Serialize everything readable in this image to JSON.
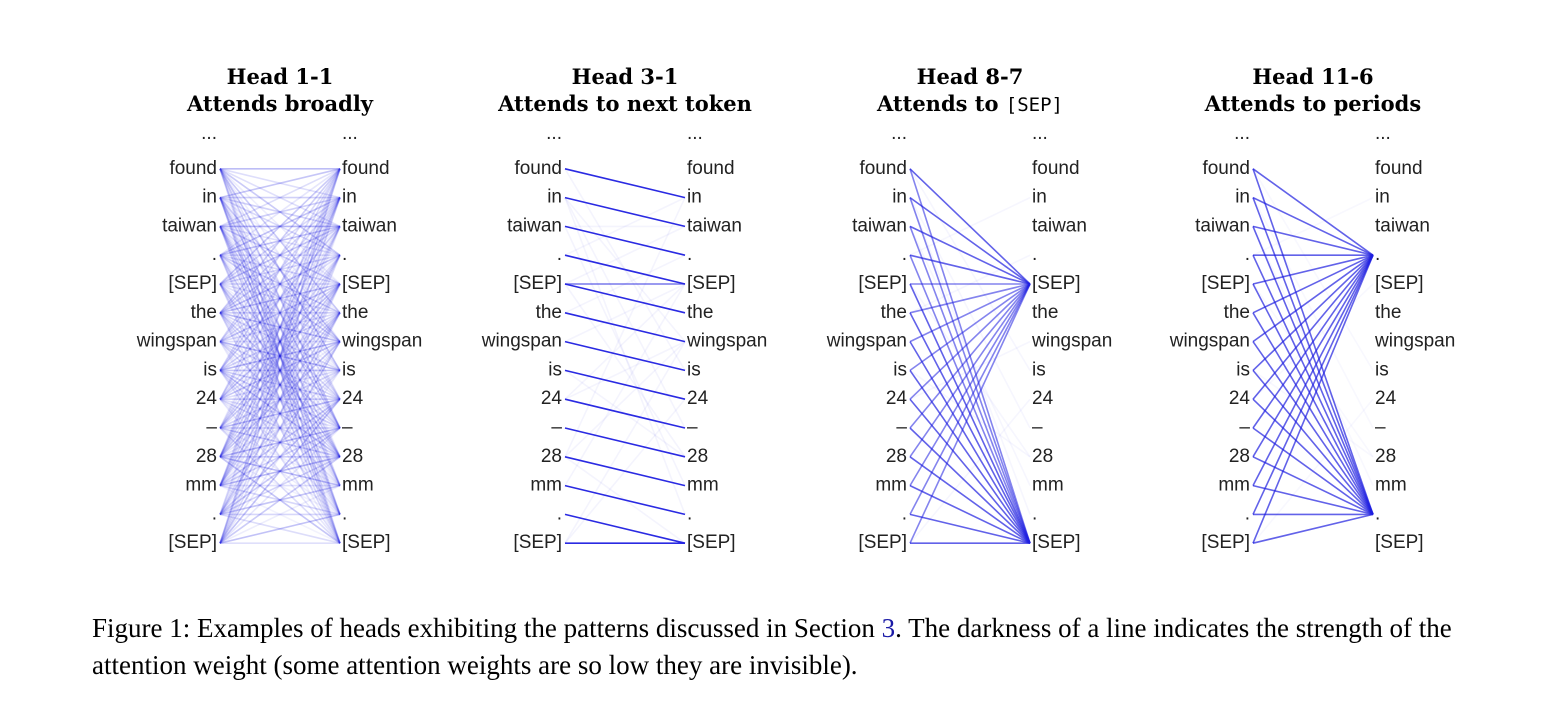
{
  "tokens": [
    "...",
    "found",
    "in",
    "taiwan",
    ".",
    "[SEP]",
    "the",
    "wingspan",
    "is",
    "24",
    "–",
    "28",
    "mm",
    ".",
    "[SEP]"
  ],
  "line_color": "#1f1fe0",
  "panels": [
    {
      "title": "Head 1-1",
      "subtitle_prefix": "Attends broadly",
      "subtitle_mono": "",
      "pattern": "broad"
    },
    {
      "title": "Head 3-1",
      "subtitle_prefix": "Attends to next token",
      "subtitle_mono": "",
      "pattern": "next"
    },
    {
      "title": "Head 8-7",
      "subtitle_prefix": "Attends to ",
      "subtitle_mono": "[SEP]",
      "pattern": "sep"
    },
    {
      "title": "Head 11-6",
      "subtitle_prefix": "Attends to periods",
      "subtitle_mono": "",
      "pattern": "period"
    }
  ],
  "caption": {
    "prefix": "Figure 1: Examples of heads exhibiting the patterns discussed in Section ",
    "ref": "3",
    "suffix": ". The darkness of a line indicates the strength of the attention weight (some attention weights are so low they are invisible)."
  }
}
